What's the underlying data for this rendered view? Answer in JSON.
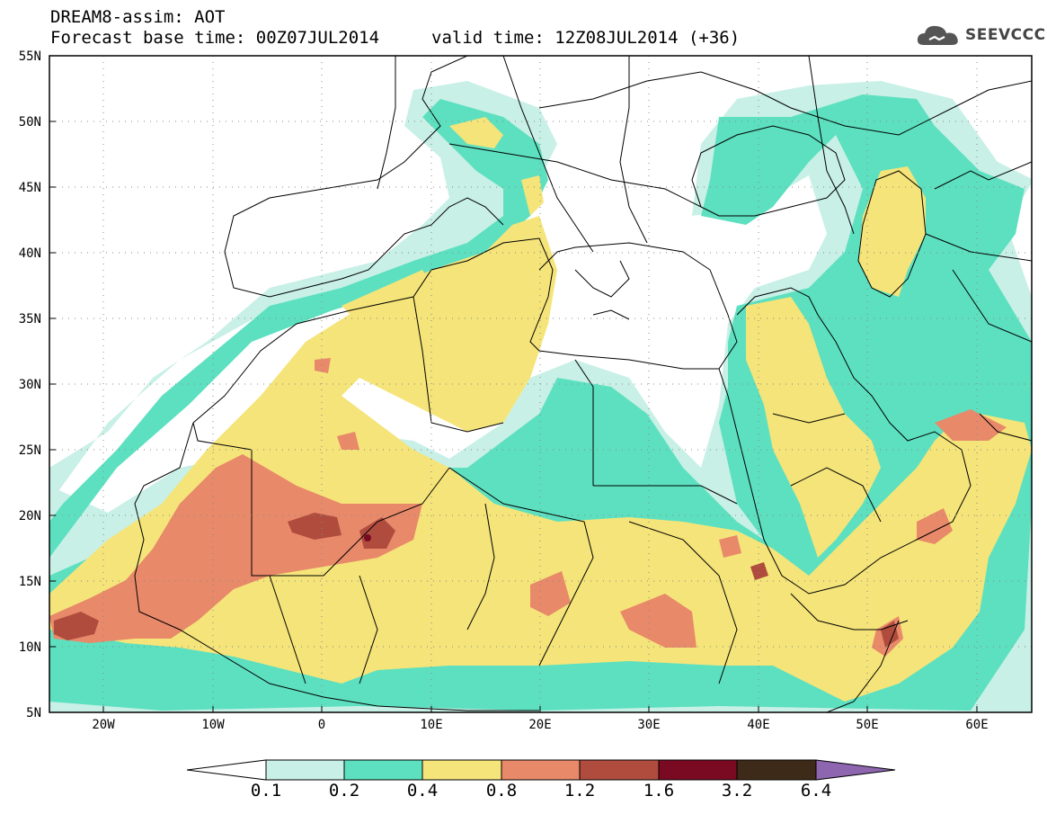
{
  "header": {
    "title_line1": "DREAM8-assim: AOT",
    "base_time": "Forecast base time: 00Z07JUL2014",
    "valid_time": "valid time: 12Z08JUL2014 (+36)",
    "logo_text": "SEEVCCC"
  },
  "axes": {
    "lat_labels": [
      "55N",
      "50N",
      "45N",
      "40N",
      "35N",
      "30N",
      "25N",
      "20N",
      "15N",
      "10N",
      "5N"
    ],
    "lon_labels": [
      "20W",
      "10W",
      "0",
      "10E",
      "20E",
      "30E",
      "40E",
      "50E",
      "60E"
    ]
  },
  "colorbar": {
    "levels": [
      "0.1",
      "0.2",
      "0.4",
      "0.8",
      "1.2",
      "1.6",
      "3.2",
      "6.4"
    ],
    "colors": [
      "#ffffff",
      "#c8f0e6",
      "#5de0c0",
      "#f5e479",
      "#e8896a",
      "#b04c3e",
      "#7a0a22",
      "#3e2a18",
      "#8e66b0"
    ]
  },
  "field": {
    "variable": "AOT",
    "region": "North Africa, Europe, Middle East",
    "lat_range": [
      5,
      55
    ],
    "lon_range": [
      -25,
      65
    ],
    "colors": {
      "ocean": "#ffffff",
      "lvl_0_1": "#c8f0e6",
      "lvl_0_2": "#5de0c0",
      "lvl_0_4": "#f5e479",
      "lvl_0_8": "#e8896a",
      "lvl_1_2": "#b04c3e",
      "lvl_1_6": "#7a0a22",
      "border": "#000000"
    }
  }
}
